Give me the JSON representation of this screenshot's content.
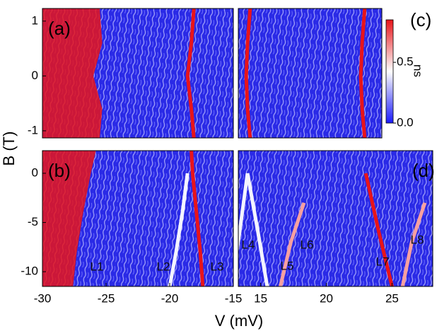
{
  "chart_data": [
    {
      "type": "heatmap-panel",
      "label": "(a)",
      "xlim": [
        -30,
        -15
      ],
      "ylim": [
        -1.13,
        1.23
      ],
      "yticks": [
        -1,
        0,
        1
      ],
      "series": [
        {
          "color": "#e8141a",
          "fill": true,
          "x": [
            -25.5,
            -25.3,
            -26,
            -25.3,
            -25.5
          ],
          "y": [
            1.23,
            0.6,
            0,
            -0.6,
            -1.13
          ]
        },
        {
          "color": "#e8141a",
          "x": [
            -18.1,
            -18.3,
            -18.6,
            -18.3,
            -18.1
          ],
          "y": [
            1.23,
            0.6,
            0,
            -0.6,
            -1.13
          ]
        }
      ]
    },
    {
      "type": "heatmap-panel",
      "label": "(b)",
      "xlim": [
        -30,
        -15
      ],
      "ylim": [
        -11.5,
        2.3
      ],
      "xticks": [
        -30,
        -25,
        -20,
        -15
      ],
      "yticks": [
        -10,
        -5,
        0
      ],
      "annotations": [
        "L1",
        "L2",
        "L3"
      ],
      "series": [
        {
          "color": "#e8141a",
          "fill": true,
          "x": [
            -25.8,
            -26.2,
            -26.8,
            -27.3,
            -27.6
          ],
          "y": [
            2.3,
            0,
            -4,
            -8,
            -11.5
          ]
        },
        {
          "color": "#e8141a",
          "x": [
            -18.3,
            -18.2,
            -17.9,
            -17.6,
            -17.4
          ],
          "y": [
            2.3,
            0,
            -4,
            -8,
            -11.5
          ]
        },
        {
          "color": "#f4f4ff",
          "x": [
            -18.6,
            -19,
            -19.5,
            -20
          ],
          "y": [
            0,
            -4,
            -8,
            -11.5
          ]
        }
      ]
    },
    {
      "type": "heatmap-panel",
      "label": "(c)",
      "xlim": [
        13.3,
        24.2
      ],
      "ylim": [
        -1.13,
        1.23
      ],
      "series": [
        {
          "color": "#e8141a",
          "x": [
            14.2,
            14,
            13.9,
            14,
            14.2
          ],
          "y": [
            1.23,
            0.6,
            0,
            -0.6,
            -1.13
          ]
        },
        {
          "color": "#e8141a",
          "x": [
            22.9,
            22.7,
            22.6,
            22.7,
            22.9
          ],
          "y": [
            1.23,
            0.6,
            0,
            -0.6,
            -1.13
          ]
        }
      ]
    },
    {
      "type": "heatmap-panel",
      "label": "(d)",
      "xlim": [
        13.3,
        28.1
      ],
      "ylim": [
        -11.5,
        2.3
      ],
      "xticks": [
        15,
        20,
        25
      ],
      "annotations": [
        "L4",
        "L5",
        "L6",
        "L7",
        "L8"
      ],
      "series": [
        {
          "color": "#f4f4ff",
          "x": [
            14,
            13.4,
            12.8
          ],
          "y": [
            0,
            -6,
            -11.5
          ]
        },
        {
          "color": "#f4f4ff",
          "x": [
            14,
            14.8,
            15.5
          ],
          "y": [
            0,
            -6,
            -11.5
          ]
        },
        {
          "color": "#f7a0a0",
          "x": [
            18.3,
            17.3,
            16.5
          ],
          "y": [
            -3,
            -7,
            -11.5
          ]
        },
        {
          "color": "#e8141a",
          "x": [
            23,
            24,
            25
          ],
          "y": [
            0,
            -6,
            -11.5
          ]
        },
        {
          "color": "#f7a0a0",
          "x": [
            27.5,
            26.5,
            25.8
          ],
          "y": [
            -3,
            -7,
            -11.5
          ]
        }
      ]
    },
    {
      "type": "colorbar",
      "xlabel": "V (mV)",
      "ylabel": "B (T)",
      "unit": "ns",
      "clim": [
        0,
        0.85
      ],
      "ticks": [
        {
          "value": 0,
          "label": "0.0"
        },
        0.5
      ],
      "colors": [
        "#1a1aff",
        "#ffffff",
        "#e8141a"
      ]
    }
  ]
}
